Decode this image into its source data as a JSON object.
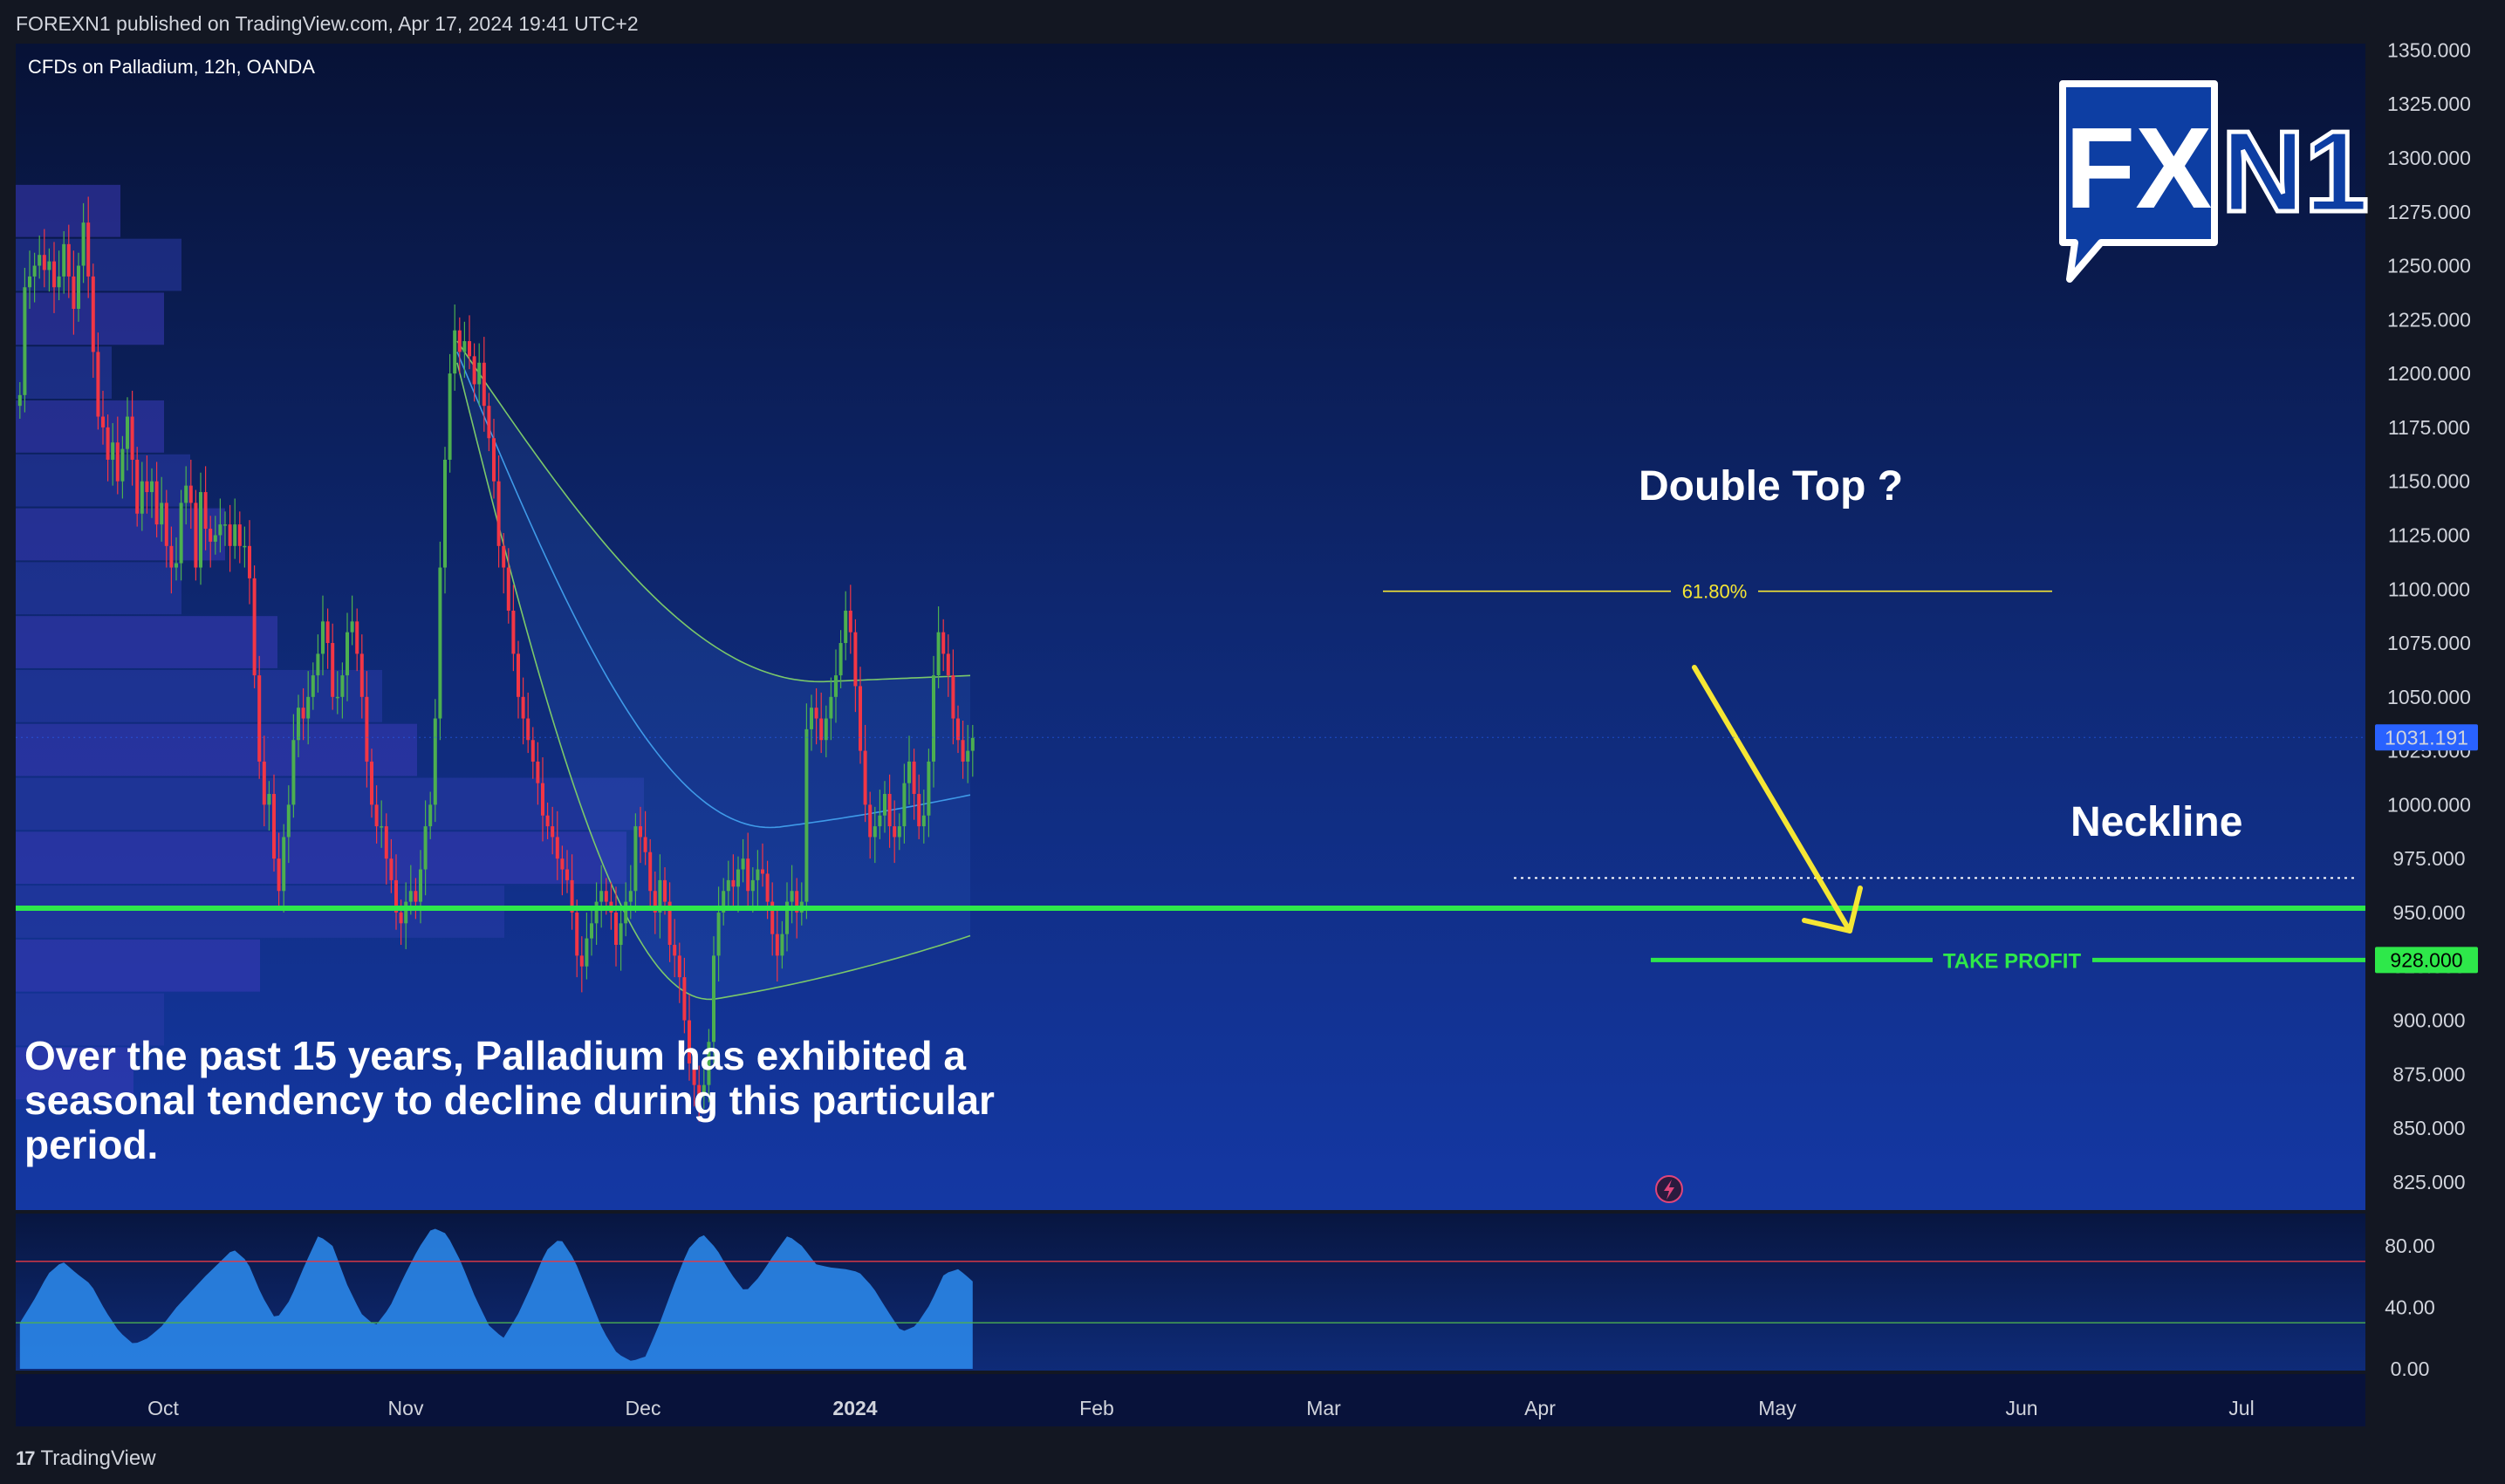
{
  "header": {
    "publisher": "FOREXN1 published on TradingView.com, Apr 17, 2024 19:41 UTC+2"
  },
  "footer": {
    "brand": "TradingView",
    "brand_mark": "17"
  },
  "logo": {
    "left_text": "FX",
    "right_text": "N1",
    "colors": {
      "box": "#0d3ea3",
      "border": "#ffffff",
      "text": "#ffffff"
    }
  },
  "chart_data": [
    {
      "type": "line",
      "symbol": "CFDs on Palladium, 12h, OANDA",
      "series": [
        {
          "values": [
            1190,
            1240,
            1245,
            1250,
            1255,
            1248,
            1252,
            1240,
            1245,
            1260,
            1245,
            1230,
            1250,
            1270,
            1245,
            1210,
            1180,
            1175,
            1160,
            1168,
            1150,
            1165,
            1180,
            1160,
            1135,
            1150,
            1145,
            1150,
            1130,
            1140,
            1120,
            1110,
            1112,
            1140,
            1148,
            1140,
            1110,
            1145,
            1128,
            1122,
            1125,
            1130,
            1130,
            1120,
            1130,
            1120,
            1120,
            1105,
            1060,
            1020,
            1000,
            1005,
            975,
            960,
            985,
            1000,
            1030,
            1045,
            1040,
            1050,
            1060,
            1070,
            1085,
            1075,
            1050,
            1050,
            1060,
            1080,
            1085,
            1070,
            1050,
            1020,
            1000,
            990,
            990,
            975,
            965,
            950,
            945,
            955,
            960,
            955,
            970,
            990,
            1000,
            1040,
            1110,
            1160,
            1200,
            1220,
            1210,
            1215,
            1208,
            1195,
            1205,
            1185,
            1170,
            1150,
            1120,
            1110,
            1090,
            1070,
            1050,
            1040,
            1030,
            1020,
            1010,
            995,
            990,
            985,
            975,
            970,
            965,
            950,
            930,
            925,
            938,
            945,
            955,
            960,
            955,
            950,
            935,
            945,
            955,
            960,
            990,
            985,
            978,
            960,
            950,
            965,
            955,
            935,
            930,
            920,
            900,
            880,
            870,
            865,
            870,
            890,
            930,
            950,
            960,
            965,
            962,
            970,
            975,
            960,
            965,
            970,
            968,
            955,
            940,
            930,
            940,
            955,
            960,
            950,
            955,
            1035,
            1045,
            1040,
            1030,
            1040,
            1050,
            1060,
            1075,
            1090,
            1080,
            1055,
            1025,
            1000,
            985,
            990,
            995,
            1005,
            990,
            985,
            990,
            1010,
            1020,
            1005,
            990,
            995,
            1020,
            1060,
            1080,
            1070,
            1060,
            1040,
            1030,
            1020,
            1025,
            1031
          ],
          "first_date": "2023-09-12",
          "interval": "12h"
        }
      ],
      "price_axis": [
        "1350.000",
        "1325.000",
        "1300.000",
        "1275.000",
        "1250.000",
        "1225.000",
        "1200.000",
        "1175.000",
        "1150.000",
        "1125.000",
        "1100.000",
        "1075.000",
        "1050.000",
        "1025.000",
        "1000.000",
        "975.000",
        "950.000",
        "925.000",
        "900.000",
        "875.000",
        "850.000",
        "825.000"
      ],
      "time_axis": [
        {
          "label": "Oct",
          "bold": false
        },
        {
          "label": "Nov",
          "bold": false
        },
        {
          "label": "Dec",
          "bold": false
        },
        {
          "label": "2024",
          "bold": true
        },
        {
          "label": "Feb",
          "bold": false
        },
        {
          "label": "Mar",
          "bold": false
        },
        {
          "label": "Apr",
          "bold": false
        },
        {
          "label": "May",
          "bold": false
        },
        {
          "label": "Jun",
          "bold": false
        },
        {
          "label": "Jul",
          "bold": false
        }
      ],
      "ylim": [
        812,
        1353
      ],
      "grid": false,
      "last_price": "1031.191",
      "take_profit_price": "928.000",
      "support_level": 952,
      "neckline_level": 966,
      "fib_level": 1099,
      "fib_label": "61.80%",
      "take_profit_label": "TAKE PROFIT",
      "annotations": {
        "title": "Double Top ?",
        "neckline": "Neckline",
        "note": "Over the past 15 years, Palladium has exhibited a seasonal tendency to decline during this particular period."
      },
      "colors": {
        "up": "#4caf50",
        "down": "#f23645",
        "support": "#2ee84a",
        "arrow": "#f5e634",
        "fib": "#f5e634",
        "last_price_bg": "#2962ff",
        "take_profit_bg": "#2ee84a"
      }
    },
    {
      "type": "area",
      "name": "Oscillator",
      "ylim": [
        0,
        100
      ],
      "y_axis": [
        "80.00",
        "40.00",
        "0.00"
      ],
      "upper_band": 70,
      "lower_band": 30,
      "values": [
        30,
        45,
        62,
        70,
        62,
        55,
        38,
        24,
        16,
        20,
        28,
        40,
        50,
        60,
        69,
        78,
        70,
        48,
        32,
        45,
        67,
        87,
        80,
        55,
        36,
        28,
        40,
        60,
        78,
        92,
        88,
        70,
        47,
        28,
        20,
        35,
        55,
        77,
        85,
        71,
        48,
        25,
        10,
        5,
        8,
        30,
        55,
        78,
        88,
        78,
        62,
        50,
        60,
        74,
        87,
        80,
        68,
        66,
        65,
        63,
        53,
        38,
        24,
        28,
        42,
        62,
        65,
        57
      ],
      "colors": {
        "fill": "#2d8cf0",
        "upper": "#e53945",
        "lower": "#4caf50"
      }
    }
  ]
}
